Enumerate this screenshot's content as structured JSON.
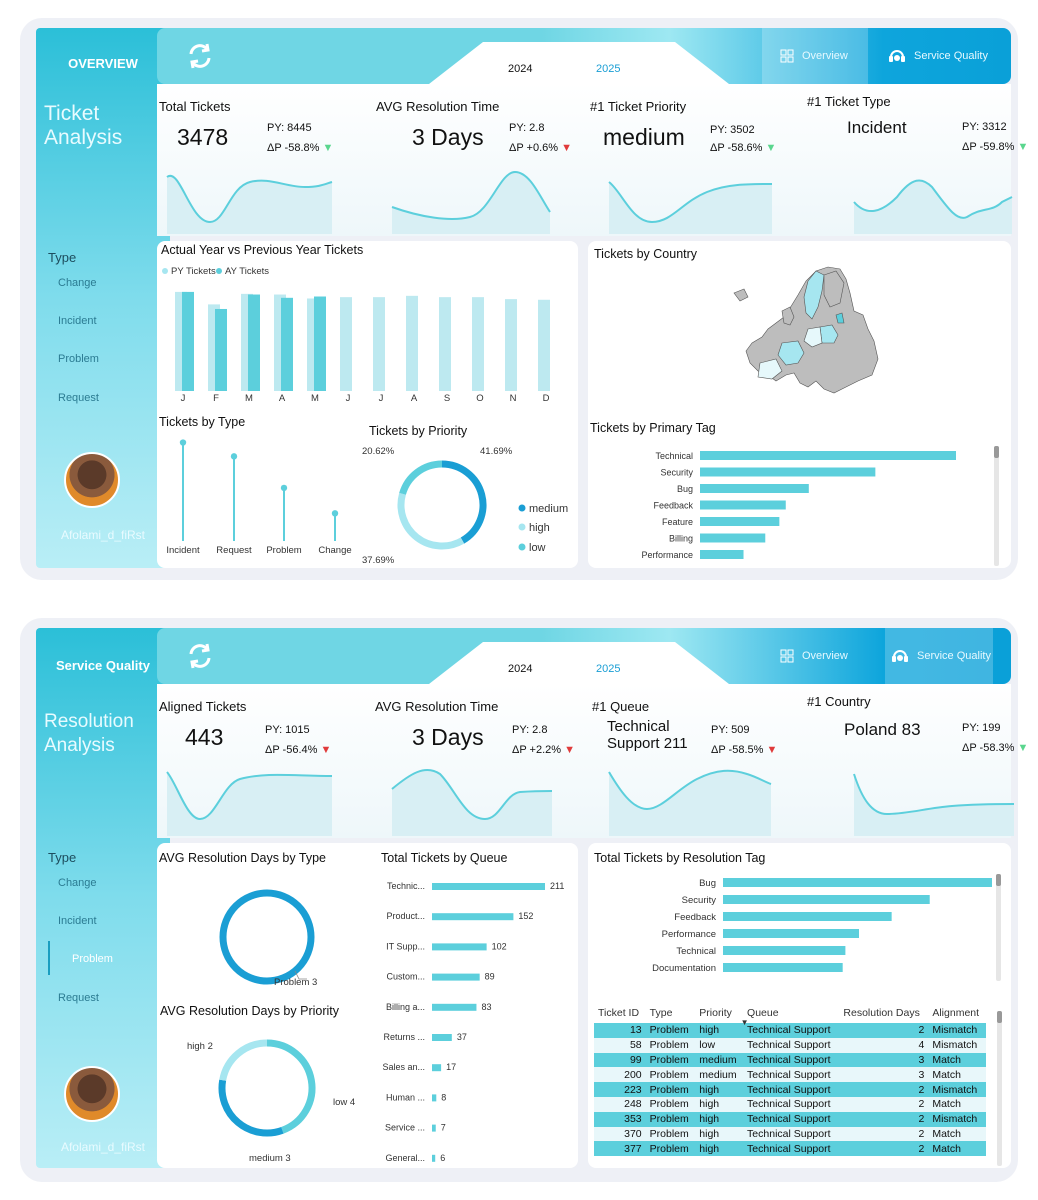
{
  "overview": {
    "sidebar": {
      "section_title": "OVERVIEW",
      "big_title_1": "Ticket",
      "big_title_2": "Analysis",
      "type_label": "Type",
      "types": [
        "Change",
        "Incident",
        "Problem",
        "Request"
      ],
      "user": "Afolami_d_fiRst"
    },
    "header": {
      "year_1": "2024",
      "year_2": "2025",
      "nav_overview": "Overview",
      "nav_service": "Service Quality"
    },
    "kpis": [
      {
        "title": "Total Tickets",
        "value": "3478",
        "py": "PY:  8445",
        "delta": "ΔP -58.8%",
        "arrow": "▼"
      },
      {
        "title": "AVG Resolution Time",
        "value": "3 Days",
        "py": "PY:  2.8",
        "delta": "ΔP +0.6%",
        "arrow": "▼"
      },
      {
        "title": "#1 Ticket Priority",
        "value": "medium",
        "py": "PY:  3502",
        "delta": "ΔP -58.6%",
        "arrow": "▼"
      },
      {
        "title": "#1 Ticket Type",
        "value": "Incident",
        "py": "PY:  3312",
        "delta": "ΔP -59.8%",
        "arrow": "▼"
      }
    ],
    "ay_py": {
      "title": "Actual Year vs Previous Year Tickets",
      "legend_py": "PY Tickets",
      "legend_ay": "AY Tickets",
      "chart_data": {
        "type": "bar",
        "categories": [
          "J",
          "F",
          "M",
          "A",
          "M",
          "J",
          "J",
          "A",
          "S",
          "O",
          "N",
          "D"
        ],
        "series": [
          {
            "name": "PY Tickets",
            "values": [
              755,
              660,
              740,
              735,
              705,
              715,
              715,
              725,
              715,
              715,
              700,
              695
            ]
          },
          {
            "name": "AY Tickets",
            "values": [
              755,
              625,
              735,
              710,
              720,
              null,
              null,
              null,
              null,
              null,
              null,
              null
            ]
          }
        ],
        "ylim": [
          0,
          800
        ]
      }
    },
    "country": {
      "title": "Tickets by Country"
    },
    "by_type": {
      "title": "Tickets by Type",
      "chart_data": {
        "type": "scatter",
        "categories": [
          "Incident",
          "Request",
          "Problem",
          "Change"
        ],
        "values": [
          1280,
          1100,
          690,
          360
        ],
        "ylim": [
          0,
          1300
        ]
      }
    },
    "by_priority": {
      "title": "Tickets by Priority",
      "chart_data": {
        "type": "pie",
        "labels": [
          "medium",
          "high",
          "low"
        ],
        "values": [
          41.69,
          37.69,
          20.62
        ],
        "value_labels": [
          "41.69%",
          "37.69%",
          "20.62%"
        ],
        "colors": [
          "#1a9ed4",
          "#a6e6f0",
          "#5ccfdc"
        ]
      }
    },
    "by_tag": {
      "title": "Tickets by Primary Tag",
      "chart_data": {
        "type": "bar",
        "categories": [
          "Technical",
          "Security",
          "Bug",
          "Feedback",
          "Feature",
          "Billing",
          "Performance"
        ],
        "values": [
          1000,
          685,
          425,
          335,
          310,
          255,
          170
        ],
        "xlim": [
          0,
          1000
        ]
      }
    }
  },
  "service": {
    "sidebar": {
      "section_title": "Service Quality",
      "big_title_1": "Resolution",
      "big_title_2": "Analysis",
      "type_label": "Type",
      "types": [
        "Change",
        "Incident",
        "Problem",
        "Request"
      ],
      "user": "Afolami_d_fiRst"
    },
    "header": {
      "year_1": "2024",
      "year_2": "2025",
      "nav_overview": "Overview",
      "nav_service": "Service Quality"
    },
    "kpis": [
      {
        "title": "Aligned Tickets",
        "value": "443",
        "py": "PY:  1015",
        "delta": "ΔP -56.4%",
        "arrow": "▼"
      },
      {
        "title": "AVG Resolution Time",
        "value": "3 Days",
        "py": "PY:  2.8",
        "delta": "ΔP +2.2%",
        "arrow": "▼"
      },
      {
        "title": "#1 Queue",
        "value_1": "Technical",
        "value_2": "Support 211",
        "py": "PY:  509",
        "delta": "ΔP -58.5%",
        "arrow": "▼"
      },
      {
        "title": "#1 Country",
        "value": "Poland 83",
        "py": "PY:  199",
        "delta": "ΔP -58.3%",
        "arrow": "▼"
      }
    ],
    "by_type": {
      "title": "AVG Resolution Days by Type",
      "chart_data": {
        "type": "pie",
        "labels": [
          "Problem"
        ],
        "values": [
          3
        ],
        "value_labels": [
          "Problem 3"
        ]
      }
    },
    "by_priority": {
      "title": "AVG Resolution Days by Priority",
      "chart_data": {
        "type": "pie",
        "labels": [
          "low",
          "medium",
          "high"
        ],
        "values": [
          4,
          3,
          2
        ],
        "value_labels": [
          "low 4",
          "medium 3",
          "high 2"
        ],
        "colors": [
          "#5ccfdc",
          "#1a9ed4",
          "#a6e6f0"
        ]
      }
    },
    "by_queue": {
      "title": "Total Tickets by Queue",
      "chart_data": {
        "type": "bar",
        "categories": [
          "Technic...",
          "Product...",
          "IT Supp...",
          "Custom...",
          "Billing a...",
          "Returns ...",
          "Sales an...",
          "Human ...",
          "Service ...",
          "General..."
        ],
        "values": [
          211,
          152,
          102,
          89,
          83,
          37,
          17,
          8,
          7,
          6
        ],
        "xlim": [
          0,
          211
        ]
      }
    },
    "by_tag": {
      "title": "Total Tickets by Resolution Tag",
      "chart_data": {
        "type": "bar",
        "categories": [
          "Bug",
          "Security",
          "Feedback",
          "Performance",
          "Technical",
          "Documentation"
        ],
        "values": [
          100,
          76,
          62,
          50,
          45,
          44
        ],
        "xlim": [
          0,
          100
        ]
      }
    },
    "table": {
      "headers": [
        "Ticket ID",
        "Type",
        "Priority",
        "Queue",
        "Resolution Days",
        "Alignment"
      ],
      "rows": [
        [
          "13",
          "Problem",
          "high",
          "Technical Support",
          "2",
          "Mismatch"
        ],
        [
          "58",
          "Problem",
          "low",
          "Technical Support",
          "4",
          "Mismatch"
        ],
        [
          "99",
          "Problem",
          "medium",
          "Technical Support",
          "3",
          "Match"
        ],
        [
          "200",
          "Problem",
          "medium",
          "Technical Support",
          "3",
          "Match"
        ],
        [
          "223",
          "Problem",
          "high",
          "Technical Support",
          "2",
          "Mismatch"
        ],
        [
          "248",
          "Problem",
          "high",
          "Technical Support",
          "2",
          "Match"
        ],
        [
          "353",
          "Problem",
          "high",
          "Technical Support",
          "2",
          "Mismatch"
        ],
        [
          "370",
          "Problem",
          "high",
          "Technical Support",
          "2",
          "Match"
        ],
        [
          "377",
          "Problem",
          "high",
          "Technical Support",
          "2",
          "Match"
        ]
      ]
    }
  }
}
